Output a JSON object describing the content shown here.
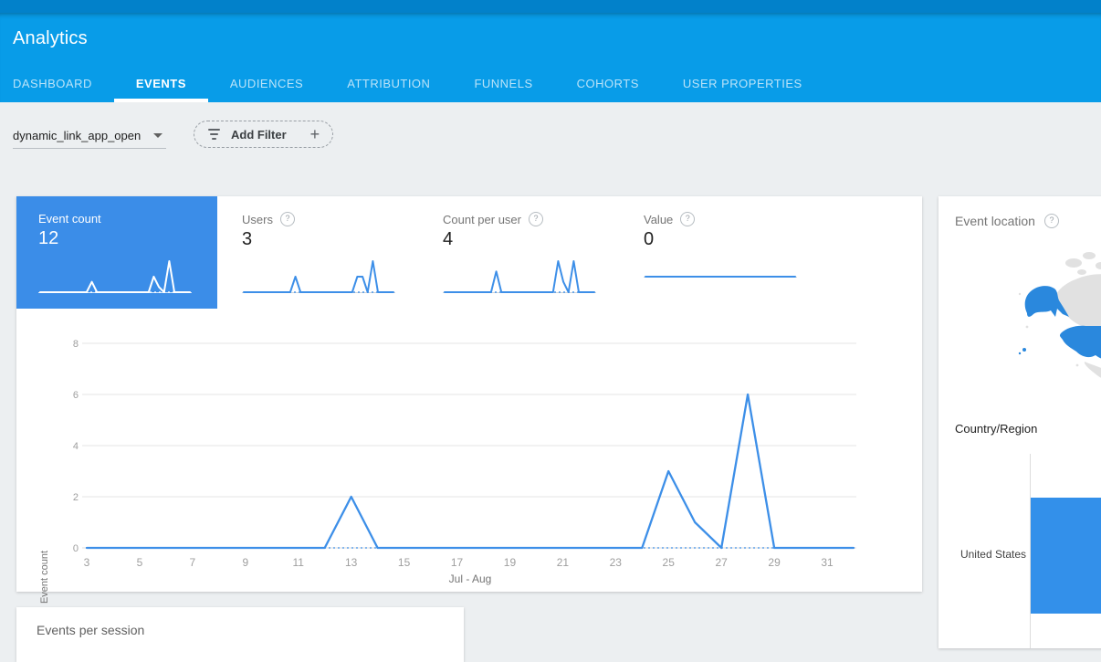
{
  "header": {
    "app_title": "Analytics",
    "tabs": [
      {
        "label": "DASHBOARD",
        "active": false
      },
      {
        "label": "EVENTS",
        "active": true
      },
      {
        "label": "AUDIENCES",
        "active": false
      },
      {
        "label": "ATTRIBUTION",
        "active": false
      },
      {
        "label": "FUNNELS",
        "active": false
      },
      {
        "label": "COHORTS",
        "active": false
      },
      {
        "label": "USER PROPERTIES",
        "active": false
      }
    ]
  },
  "filter_bar": {
    "event_selector_value": "dynamic_link_app_open",
    "add_filter_label": "Add Filter"
  },
  "metric_cards": [
    {
      "label": "Event count",
      "value": "12",
      "selected": true,
      "has_help": false
    },
    {
      "label": "Users",
      "value": "3",
      "selected": false,
      "has_help": true
    },
    {
      "label": "Count per user",
      "value": "4",
      "selected": false,
      "has_help": true
    },
    {
      "label": "Value",
      "value": "0",
      "selected": false,
      "has_help": true
    }
  ],
  "main_chart": {
    "ylabel": "Event count",
    "xlabel": "Jul - Aug"
  },
  "event_location": {
    "title": "Event location",
    "dimension_label": "Country/Region",
    "rows": [
      {
        "label": "United States"
      }
    ],
    "map_highlight": "United States"
  },
  "events_per_session": {
    "title": "Events per session"
  },
  "colors": {
    "header_blue": "#089ce8",
    "header_top_strip": "#0281ca",
    "selected_tile_blue": "#3b8de8",
    "line_blue": "#3d8fe8",
    "grid_gray": "#e6e6e6",
    "tick_text_gray": "#9e9e9e",
    "map_land_gray": "#e1e1e1",
    "map_highlight_blue": "#2a88dd",
    "bar_blue": "#3390ea"
  },
  "chart_data": [
    {
      "id": "event-count-by-day",
      "svg": "main-chart",
      "type": "line",
      "title": "Event count",
      "xlabel": "Jul - Aug",
      "ylabel": "Event count",
      "x_unit": "day of month, Jul 3 to Aug 1",
      "x_domain": [
        3,
        32
      ],
      "ylim": [
        0,
        8
      ],
      "y_ticks": [
        0,
        2,
        4,
        6,
        8
      ],
      "x_ticks": [
        3,
        5,
        7,
        9,
        11,
        13,
        15,
        17,
        19,
        21,
        23,
        25,
        27,
        29,
        31
      ],
      "points": [
        [
          3,
          0
        ],
        [
          12,
          0
        ],
        [
          13,
          2
        ],
        [
          14,
          0
        ],
        [
          24,
          0
        ],
        [
          25,
          3
        ],
        [
          26,
          1
        ],
        [
          27,
          0
        ],
        [
          28,
          6
        ],
        [
          29,
          0
        ],
        [
          32,
          0
        ]
      ],
      "zero_baseline_dashed": true,
      "grid": true,
      "legend": false
    },
    {
      "id": "sparkline-event-count",
      "svg": "spark-0",
      "type": "line",
      "series": "Event count",
      "x_domain": [
        3,
        32
      ],
      "ylim": [
        0,
        6
      ],
      "points": [
        [
          3,
          0
        ],
        [
          12,
          0
        ],
        [
          13,
          2
        ],
        [
          14,
          0
        ],
        [
          24,
          0
        ],
        [
          25,
          3
        ],
        [
          26,
          1
        ],
        [
          27,
          0
        ],
        [
          28,
          6
        ],
        [
          29,
          0
        ],
        [
          32,
          0
        ]
      ],
      "stroke": "#ffffff"
    },
    {
      "id": "sparkline-users",
      "svg": "spark-1",
      "type": "line",
      "series": "Users",
      "x_domain": [
        3,
        32
      ],
      "ylim": [
        0,
        2
      ],
      "points": [
        [
          3,
          0
        ],
        [
          12,
          0
        ],
        [
          13,
          1
        ],
        [
          14,
          0
        ],
        [
          24,
          0
        ],
        [
          25,
          1
        ],
        [
          26,
          1
        ],
        [
          27,
          0
        ],
        [
          28,
          2
        ],
        [
          29,
          0
        ],
        [
          32,
          0
        ]
      ],
      "stroke": "#3d8fe8"
    },
    {
      "id": "sparkline-count-per-user",
      "svg": "spark-2",
      "type": "line",
      "series": "Count per user",
      "x_domain": [
        3,
        32
      ],
      "ylim": [
        0,
        3
      ],
      "points": [
        [
          3,
          0
        ],
        [
          12,
          0
        ],
        [
          13,
          2
        ],
        [
          14,
          0
        ],
        [
          24,
          0
        ],
        [
          25,
          3
        ],
        [
          26,
          1
        ],
        [
          27,
          0
        ],
        [
          28,
          3
        ],
        [
          29,
          0
        ],
        [
          32,
          0
        ]
      ],
      "stroke": "#3d8fe8"
    },
    {
      "id": "sparkline-value",
      "svg": "spark-3",
      "type": "line",
      "series": "Value",
      "flat_center": true,
      "x_domain": [
        3,
        32
      ],
      "ylim": [
        0,
        1
      ],
      "points": [
        [
          3,
          0
        ],
        [
          32,
          0
        ]
      ],
      "stroke": "#3d8fe8"
    },
    {
      "id": "event-location-bar",
      "type": "bar",
      "orientation": "horizontal",
      "title": "Country/Region",
      "categories": [
        "United States"
      ],
      "values_visible": false
    }
  ]
}
